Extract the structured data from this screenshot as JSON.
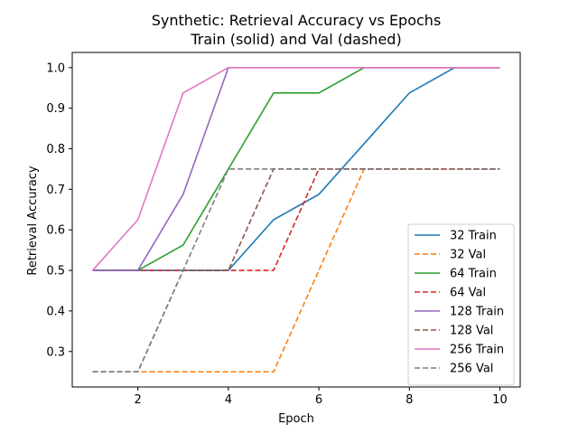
{
  "chart_data": {
    "type": "line",
    "title": "Synthetic: Retrieval Accuracy vs Epochs",
    "subtitle": "Train (solid) and Val (dashed)",
    "xlabel": "Epoch",
    "ylabel": "Retrieval Accuracy",
    "xlim": [
      0.55,
      10.45
    ],
    "ylim": [
      0.2125,
      1.0375
    ],
    "xticks": [
      2,
      4,
      6,
      8,
      10
    ],
    "yticks": [
      0.3,
      0.4,
      0.5,
      0.6,
      0.7,
      0.8,
      0.9,
      1.0
    ],
    "grid": false,
    "legend_position": "lower right",
    "x": [
      1,
      2,
      3,
      4,
      5,
      6,
      7,
      8,
      9,
      10
    ],
    "series": [
      {
        "name": "32 Train",
        "color": "#1f77b4",
        "style": "solid",
        "values": [
          0.5,
          0.5,
          0.5,
          0.5,
          0.625,
          0.6875,
          0.8125,
          0.9375,
          1.0,
          1.0
        ]
      },
      {
        "name": "32 Val",
        "color": "#ff7f0e",
        "style": "dashed",
        "values": [
          0.25,
          0.25,
          0.25,
          0.25,
          0.25,
          0.5,
          0.75,
          0.75,
          0.75,
          0.75
        ]
      },
      {
        "name": "64 Train",
        "color": "#2ca02c",
        "style": "solid",
        "values": [
          0.5,
          0.5,
          0.5625,
          0.75,
          0.9375,
          0.9375,
          1.0,
          1.0,
          1.0,
          1.0
        ]
      },
      {
        "name": "64 Val",
        "color": "#d62728",
        "style": "dashed",
        "values": [
          0.5,
          0.5,
          0.5,
          0.5,
          0.5,
          0.75,
          0.75,
          0.75,
          0.75,
          0.75
        ]
      },
      {
        "name": "128 Train",
        "color": "#9467bd",
        "style": "solid",
        "values": [
          0.5,
          0.5,
          0.6875,
          1.0,
          1.0,
          1.0,
          1.0,
          1.0,
          1.0,
          1.0
        ]
      },
      {
        "name": "128 Val",
        "color": "#8c564b",
        "style": "dashed",
        "values": [
          0.25,
          0.25,
          0.5,
          0.5,
          0.75,
          0.75,
          0.75,
          0.75,
          0.75,
          0.75
        ]
      },
      {
        "name": "256 Train",
        "color": "#e377c2",
        "style": "solid",
        "values": [
          0.5,
          0.625,
          0.9375,
          1.0,
          1.0,
          1.0,
          1.0,
          1.0,
          1.0,
          1.0
        ]
      },
      {
        "name": "256 Val",
        "color": "#7f7f7f",
        "style": "dashed",
        "values": [
          0.25,
          0.25,
          0.5,
          0.75,
          0.75,
          0.75,
          0.75,
          0.75,
          0.75,
          0.75
        ]
      }
    ]
  }
}
